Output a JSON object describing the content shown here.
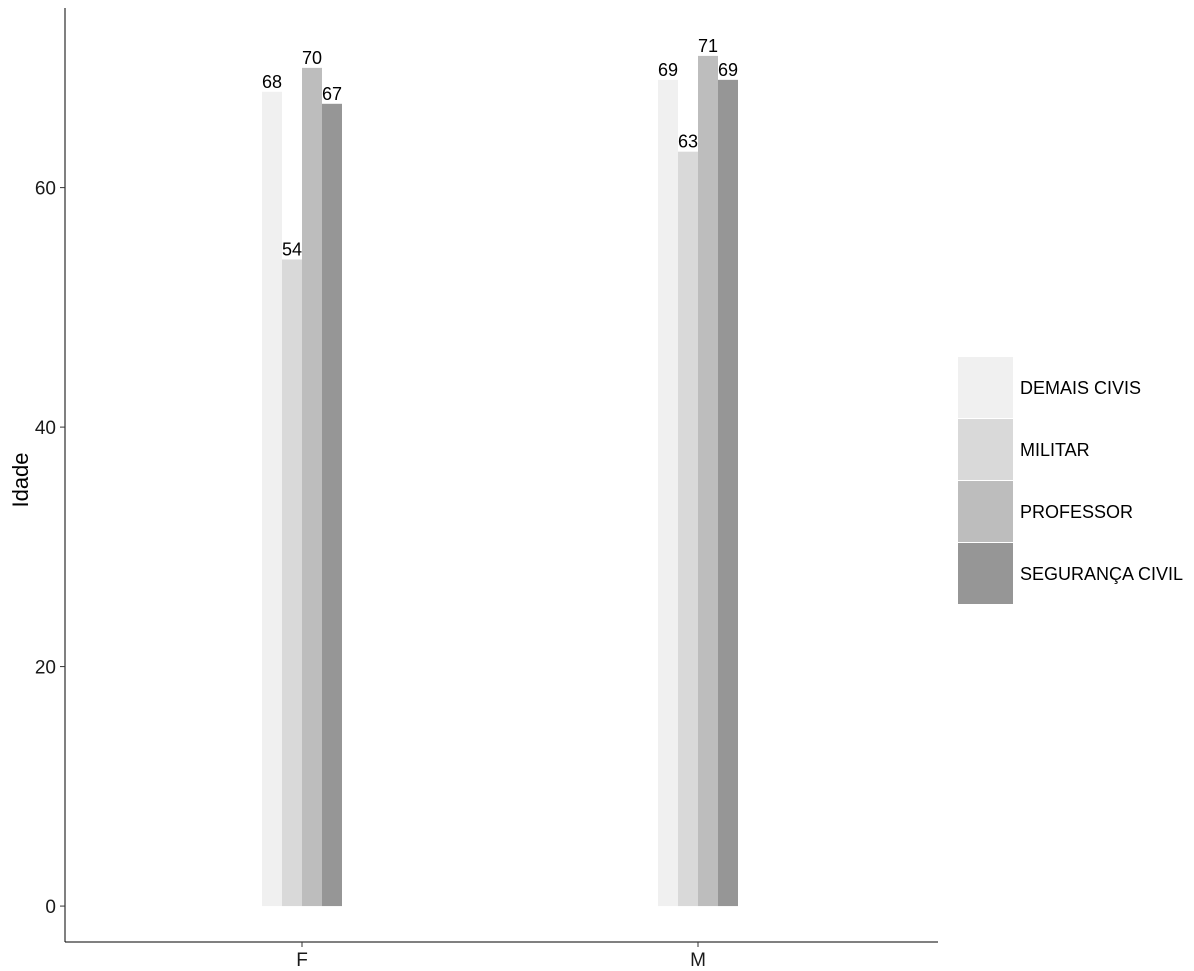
{
  "chart_data": {
    "type": "bar",
    "title": "",
    "xlabel": "",
    "ylabel": "Idade",
    "ylim": [
      -3,
      75
    ],
    "yticks": [
      0,
      20,
      40,
      60
    ],
    "categories": [
      "F",
      "M"
    ],
    "series": [
      {
        "name": "DEMAIS CIVIS",
        "color": "#F0F0F0",
        "values": [
          68,
          69
        ]
      },
      {
        "name": "MILITAR",
        "color": "#D9D9D9",
        "values": [
          54,
          63
        ]
      },
      {
        "name": "PROFESSOR",
        "color": "#BDBDBD",
        "values": [
          70,
          71
        ]
      },
      {
        "name": "SEGURANÇA CIVIL",
        "color": "#969696",
        "values": [
          67,
          69
        ]
      }
    ],
    "grid": false,
    "legend_position": "right"
  }
}
